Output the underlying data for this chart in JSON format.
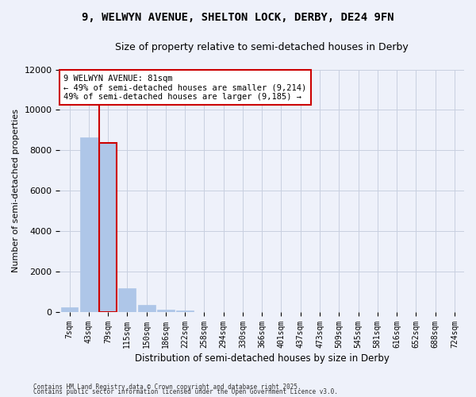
{
  "title_line1": "9, WELWYN AVENUE, SHELTON LOCK, DERBY, DE24 9FN",
  "title_line2": "Size of property relative to semi-detached houses in Derby",
  "xlabel": "Distribution of semi-detached houses by size in Derby",
  "ylabel": "Number of semi-detached properties",
  "categories": [
    "7sqm",
    "43sqm",
    "79sqm",
    "115sqm",
    "150sqm",
    "186sqm",
    "222sqm",
    "258sqm",
    "294sqm",
    "330sqm",
    "366sqm",
    "401sqm",
    "437sqm",
    "473sqm",
    "509sqm",
    "545sqm",
    "581sqm",
    "616sqm",
    "652sqm",
    "688sqm",
    "724sqm"
  ],
  "values": [
    230,
    8650,
    8380,
    1180,
    330,
    110,
    50,
    0,
    0,
    0,
    0,
    0,
    0,
    0,
    0,
    0,
    0,
    0,
    0,
    0,
    0
  ],
  "bar_color": "#aec6e8",
  "red_line_color": "#cc0000",
  "annotation_text": "9 WELWYN AVENUE: 81sqm\n← 49% of semi-detached houses are smaller (9,214)\n49% of semi-detached houses are larger (9,185) →",
  "ylim": [
    0,
    12000
  ],
  "yticks": [
    0,
    2000,
    4000,
    6000,
    8000,
    10000,
    12000
  ],
  "footer_line1": "Contains HM Land Registry data © Crown copyright and database right 2025.",
  "footer_line2": "Contains public sector information licensed under the Open Government Licence v3.0.",
  "bg_color": "#eef1fa",
  "grid_color": "#c8cfe0",
  "title_fontsize": 10,
  "subtitle_fontsize": 9,
  "highlight_bar_index": 2
}
